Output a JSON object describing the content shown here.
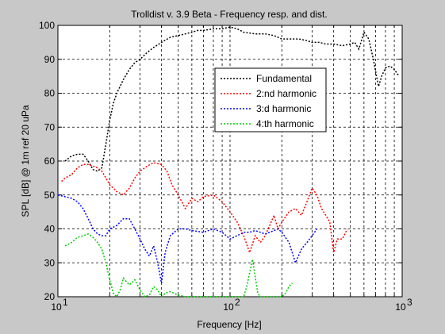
{
  "chart_data": {
    "type": "line",
    "title": "Trolldist v. 3.9 Beta - Frequency resp. and dist.",
    "xlabel": "Frequency [Hz]",
    "ylabel": "SPL [dB] @ 1m ref 20 uPa",
    "xscale": "log",
    "xlim": [
      10,
      1000
    ],
    "ylim": [
      20,
      100
    ],
    "grid": true,
    "legend_position": "upper-right",
    "x_tick_labels": [
      {
        "value": 10,
        "base": "10",
        "exp": "1"
      },
      {
        "value": 100,
        "base": "10",
        "exp": "2"
      },
      {
        "value": 1000,
        "base": "10",
        "exp": "3"
      }
    ],
    "y_ticks": [
      20,
      30,
      40,
      50,
      60,
      70,
      80,
      90,
      100
    ],
    "series": [
      {
        "name": "Fundamental",
        "color": "#000000",
        "x": [
          11,
          12,
          13,
          14,
          15,
          16,
          17,
          18,
          19,
          20,
          21,
          22,
          24,
          26,
          28,
          30,
          33,
          36,
          40,
          45,
          50,
          55,
          60,
          65,
          70,
          80,
          90,
          100,
          110,
          120,
          140,
          160,
          180,
          200,
          220,
          250,
          280,
          300,
          330,
          360,
          400,
          450,
          500,
          530,
          560,
          600,
          640,
          680,
          710,
          730,
          760,
          800,
          850,
          900,
          960
        ],
        "y": [
          60,
          61.5,
          62,
          62,
          60,
          57.5,
          57,
          58,
          65,
          72,
          77,
          80,
          84,
          87,
          89,
          90,
          92,
          93.5,
          95,
          96.5,
          97,
          97.5,
          98,
          98.5,
          98.5,
          99,
          99,
          99.5,
          99,
          98,
          97.5,
          97.5,
          97,
          96,
          96,
          96,
          95.5,
          95,
          95,
          94.5,
          94.5,
          94,
          94.5,
          95,
          93,
          98,
          96,
          90,
          85,
          82,
          85,
          87.5,
          88,
          87,
          85
        ]
      },
      {
        "name": "2:nd harmonic",
        "color": "#ff0000",
        "x": [
          10.5,
          11,
          12,
          13,
          14,
          15,
          16,
          17,
          18,
          19,
          20,
          22,
          24,
          26,
          28,
          30,
          33,
          36,
          40,
          43,
          46,
          50,
          55,
          60,
          65,
          70,
          80,
          90,
          100,
          110,
          120,
          130,
          140,
          150,
          160,
          170,
          180,
          190,
          200,
          220,
          240,
          260,
          280,
          300,
          320,
          340,
          360,
          380,
          400,
          420,
          450,
          480
        ],
        "y": [
          54,
          55,
          56,
          58,
          59,
          59,
          58.5,
          58,
          57,
          55,
          53,
          51,
          50,
          52,
          55,
          57,
          58.5,
          59.5,
          59,
          57,
          53,
          50,
          46,
          49,
          48,
          49.5,
          50,
          48,
          45,
          42,
          38,
          33,
          38,
          36,
          38,
          41,
          44,
          40,
          42,
          45,
          46,
          44,
          48,
          52,
          50,
          46,
          44,
          42,
          33,
          37,
          37,
          40
        ]
      },
      {
        "name": "3:d harmonic",
        "color": "#0000ff",
        "x": [
          10,
          11,
          12,
          13,
          14,
          15,
          16,
          17,
          18,
          19,
          20,
          22,
          24,
          26,
          28,
          30,
          32,
          34,
          36,
          38,
          40,
          42,
          45,
          50,
          55,
          60,
          70,
          80,
          90,
          100,
          110,
          120,
          130,
          140,
          150,
          160,
          170,
          180,
          190,
          200,
          220,
          240,
          260,
          280,
          300,
          320
        ],
        "y": [
          50,
          49.5,
          49,
          48,
          46,
          43,
          40,
          38.5,
          38,
          38,
          40,
          41,
          43,
          43,
          40,
          37,
          34,
          32,
          35,
          30,
          24,
          33,
          38,
          40,
          40,
          39.5,
          39,
          40,
          39,
          37,
          38,
          39,
          39,
          39.5,
          39,
          38.5,
          39,
          39.5,
          40,
          39,
          36,
          30,
          34,
          36,
          38,
          40
        ]
      },
      {
        "name": "4:th harmonic",
        "color": "#00cc00",
        "x": [
          11,
          12,
          13,
          14,
          15,
          16,
          17,
          18,
          19,
          20,
          21,
          22,
          23,
          24,
          26,
          28,
          30,
          32,
          34,
          36,
          38,
          40,
          42,
          45,
          50,
          55,
          120,
          125,
          130,
          135,
          140,
          145,
          150,
          160,
          170,
          180,
          190,
          200,
          210,
          220,
          230
        ],
        "y": [
          35,
          36,
          37.5,
          38,
          38.5,
          37.5,
          36,
          34,
          30,
          25,
          21,
          20,
          22,
          25.5,
          23.5,
          25,
          22,
          20,
          20.5,
          23,
          22,
          20,
          21,
          21.5,
          20.5,
          20,
          20,
          23,
          27,
          31,
          26,
          21,
          20,
          20,
          20,
          20,
          20,
          20,
          21,
          23,
          24
        ]
      }
    ]
  }
}
